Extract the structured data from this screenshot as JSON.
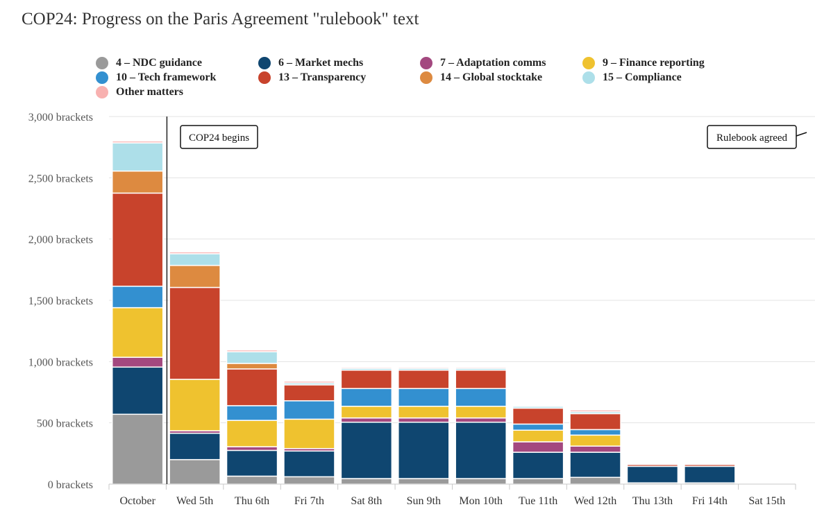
{
  "title": "COP24: Progress on the Paris Agreement \"rulebook\" text",
  "chart_data": {
    "type": "bar",
    "stacked": true,
    "grid": true,
    "legend_position": "top",
    "ylim": [
      0,
      3000
    ],
    "y_ticks": [
      {
        "value": 0,
        "label": "0 brackets"
      },
      {
        "value": 500,
        "label": "500 brackets"
      },
      {
        "value": 1000,
        "label": "1,000 brackets"
      },
      {
        "value": 1500,
        "label": "1,500 brackets"
      },
      {
        "value": 2000,
        "label": "2,000 brackets"
      },
      {
        "value": 2500,
        "label": "2,500 brackets"
      },
      {
        "value": 3000,
        "label": "3,000 brackets"
      }
    ],
    "categories": [
      "October",
      "Wed 5th",
      "Thu 6th",
      "Fri 7th",
      "Sat 8th",
      "Sun 9th",
      "Mon 10th",
      "Tue 11th",
      "Wed 12th",
      "Thu 13th",
      "Fri 14th",
      "Sat 15th"
    ],
    "series": [
      {
        "name": "4 – NDC guidance",
        "color": "#9a9a9a",
        "values": [
          570,
          200,
          65,
          60,
          45,
          45,
          45,
          45,
          55,
          10,
          10,
          0
        ]
      },
      {
        "name": "6 – Market mechs",
        "color": "#0f4670",
        "values": [
          385,
          215,
          210,
          210,
          460,
          460,
          460,
          215,
          205,
          135,
          135,
          0
        ]
      },
      {
        "name": "7 – Adaptation comms",
        "color": "#a3487f",
        "values": [
          80,
          20,
          30,
          20,
          35,
          35,
          35,
          85,
          50,
          0,
          0,
          0
        ]
      },
      {
        "name": "9 – Finance reporting",
        "color": "#efc22f",
        "values": [
          405,
          420,
          215,
          240,
          95,
          95,
          95,
          95,
          90,
          0,
          0,
          0
        ]
      },
      {
        "name": "10 – Tech framework",
        "color": "#3390d0",
        "values": [
          175,
          0,
          120,
          150,
          145,
          145,
          145,
          50,
          45,
          0,
          0,
          0
        ]
      },
      {
        "name": "13 – Transparency",
        "color": "#c8432c",
        "values": [
          760,
          750,
          300,
          130,
          150,
          150,
          150,
          130,
          130,
          15,
          15,
          0
        ]
      },
      {
        "name": "14 – Global stocktake",
        "color": "#dd8a40",
        "values": [
          180,
          180,
          45,
          0,
          0,
          0,
          0,
          0,
          0,
          0,
          0,
          0
        ]
      },
      {
        "name": "15 – Compliance",
        "color": "#addfe9",
        "values": [
          230,
          95,
          95,
          15,
          15,
          15,
          15,
          15,
          15,
          0,
          0,
          0
        ]
      },
      {
        "name": "Other matters",
        "color": "#f8b1b0",
        "values": [
          15,
          15,
          15,
          15,
          10,
          10,
          10,
          5,
          15,
          5,
          5,
          0
        ]
      }
    ],
    "annotations": [
      {
        "label": "COP24 begins",
        "category": "Wed 5th"
      },
      {
        "label": "Rulebook agreed",
        "category": "Sat 15th"
      }
    ]
  }
}
